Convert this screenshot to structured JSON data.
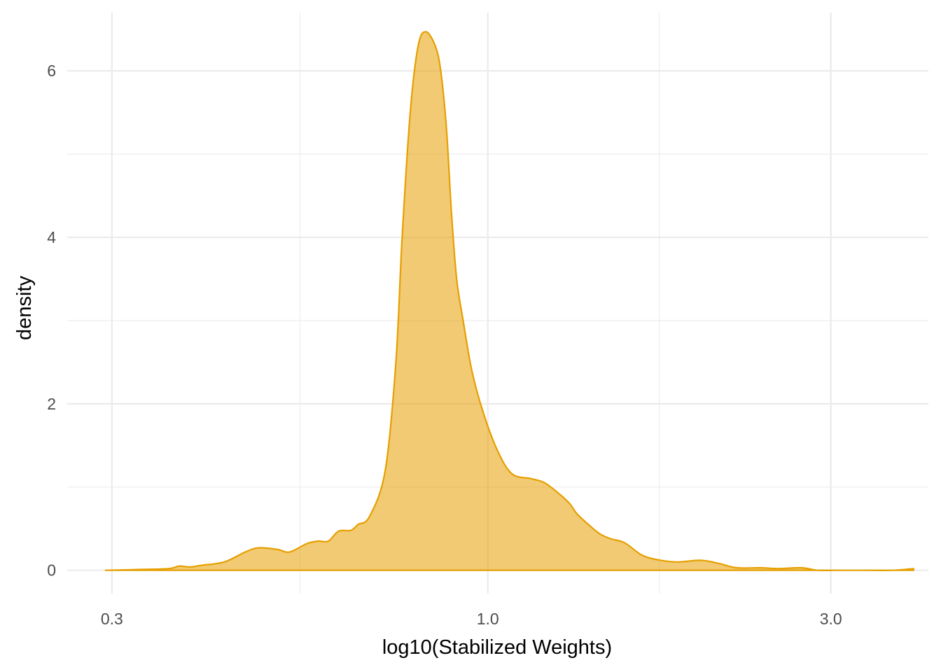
{
  "chart_data": {
    "type": "area",
    "title": "",
    "xlabel": "log10(Stabilized Weights)",
    "ylabel": "density",
    "x_scale": "log10",
    "xlim": [
      0.26,
      4.1
    ],
    "ylim": [
      -0.28,
      6.7
    ],
    "x_major_ticks": [
      {
        "value": 0.3,
        "label": "0.3"
      },
      {
        "value": 1.0,
        "label": "1.0"
      },
      {
        "value": 3.0,
        "label": "3.0"
      }
    ],
    "x_minor_ticks": [
      0.548,
      1.732
    ],
    "y_major_ticks": [
      {
        "value": 0,
        "label": "0"
      },
      {
        "value": 2,
        "label": "2"
      },
      {
        "value": 4,
        "label": "4"
      },
      {
        "value": 6,
        "label": "6"
      }
    ],
    "y_minor_ticks": [
      1,
      3,
      5
    ],
    "grid": true,
    "legend": "none",
    "colors": {
      "fill": "#E69F00",
      "fill_opacity": 0.55,
      "line": "#E69F00",
      "grid": "#ebebeb"
    },
    "series": [
      {
        "x": [
          0.294,
          0.33,
          0.36,
          0.372,
          0.385,
          0.4,
          0.43,
          0.46,
          0.48,
          0.51,
          0.53,
          0.56,
          0.58,
          0.6,
          0.62,
          0.645,
          0.66,
          0.685,
          0.72,
          0.745,
          0.76,
          0.78,
          0.8,
          0.82,
          0.845,
          0.86,
          0.876,
          0.89,
          0.905,
          0.924,
          0.95,
          0.985,
          1.03,
          1.08,
          1.15,
          1.2,
          1.26,
          1.3,
          1.33,
          1.38,
          1.43,
          1.48,
          1.55,
          1.64,
          1.74,
          1.84,
          1.98,
          2.1,
          2.22,
          2.4,
          2.53,
          2.73,
          2.88,
          3.06,
          3.33,
          3.66,
          3.91
        ],
        "y": [
          0.0,
          0.01,
          0.02,
          0.05,
          0.04,
          0.06,
          0.1,
          0.22,
          0.27,
          0.25,
          0.22,
          0.32,
          0.35,
          0.35,
          0.47,
          0.48,
          0.55,
          0.65,
          1.2,
          2.5,
          4.0,
          5.5,
          6.3,
          6.47,
          6.3,
          6.0,
          5.3,
          4.3,
          3.5,
          3.0,
          2.4,
          1.9,
          1.45,
          1.16,
          1.1,
          1.05,
          0.91,
          0.8,
          0.68,
          0.55,
          0.44,
          0.38,
          0.33,
          0.18,
          0.12,
          0.1,
          0.12,
          0.08,
          0.03,
          0.03,
          0.02,
          0.03,
          0.0,
          0.0,
          0.0,
          0.0,
          0.02
        ]
      }
    ]
  }
}
